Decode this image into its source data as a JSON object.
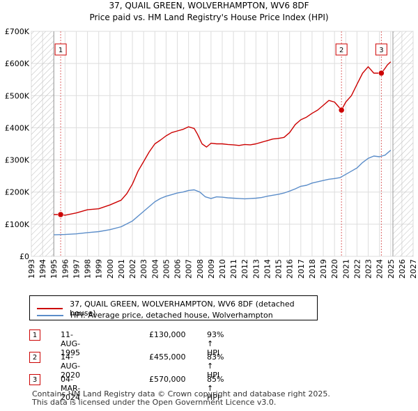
{
  "chart_data": {
    "type": "line",
    "title": "37, QUAIL GREEN, WOLVERHAMPTON, WV6 8DF",
    "subtitle": "Price paid vs. HM Land Registry's House Price Index (HPI)",
    "xlim": [
      1993,
      2027
    ],
    "ylim": [
      0,
      700000
    ],
    "y_ticks": [
      {
        "value": 0,
        "label": "£0"
      },
      {
        "value": 100000,
        "label": "£100K"
      },
      {
        "value": 200000,
        "label": "£200K"
      },
      {
        "value": 300000,
        "label": "£300K"
      },
      {
        "value": 400000,
        "label": "£400K"
      },
      {
        "value": 500000,
        "label": "£500K"
      },
      {
        "value": 600000,
        "label": "£600K"
      },
      {
        "value": 700000,
        "label": "£700K"
      }
    ],
    "x_ticks": [
      "1993",
      "1994",
      "1995",
      "1996",
      "1997",
      "1998",
      "1999",
      "2000",
      "2001",
      "2002",
      "2003",
      "2004",
      "2005",
      "2006",
      "2007",
      "2008",
      "2009",
      "2010",
      "2011",
      "2012",
      "2013",
      "2014",
      "2015",
      "2016",
      "2017",
      "2018",
      "2019",
      "2020",
      "2021",
      "2022",
      "2023",
      "2024",
      "2025",
      "2026",
      "2027"
    ],
    "data_start": 1995.0,
    "data_end": 2025.2,
    "series": [
      {
        "name": "37, QUAIL GREEN, WOLVERHAMPTON, WV6 8DF (detached house)",
        "color": "#cc0000",
        "x": [
          1995.0,
          1995.6,
          1996.0,
          1997.0,
          1998.0,
          1999.0,
          2000.0,
          2001.0,
          2001.5,
          2002.0,
          2002.5,
          2003.0,
          2003.5,
          2004.0,
          2004.5,
          2005.0,
          2005.5,
          2006.0,
          2006.5,
          2007.0,
          2007.5,
          2007.8,
          2008.2,
          2008.6,
          2009.0,
          2009.5,
          2010.0,
          2010.5,
          2011.0,
          2011.5,
          2012.0,
          2012.5,
          2013.0,
          2013.5,
          2014.0,
          2014.5,
          2015.0,
          2015.5,
          2016.0,
          2016.5,
          2017.0,
          2017.5,
          2018.0,
          2018.5,
          2019.0,
          2019.5,
          2020.0,
          2020.62,
          2021.0,
          2021.5,
          2022.0,
          2022.5,
          2023.0,
          2023.5,
          2024.17,
          2024.5,
          2024.7,
          2025.0
        ],
        "y": [
          130000,
          130000,
          128000,
          135000,
          145000,
          148000,
          160000,
          175000,
          195000,
          225000,
          265000,
          295000,
          325000,
          350000,
          362000,
          375000,
          385000,
          390000,
          395000,
          403000,
          398000,
          380000,
          350000,
          340000,
          352000,
          350000,
          350000,
          348000,
          347000,
          345000,
          348000,
          347000,
          350000,
          355000,
          360000,
          365000,
          367000,
          370000,
          385000,
          410000,
          425000,
          433000,
          445000,
          455000,
          470000,
          485000,
          480000,
          455000,
          480000,
          500000,
          535000,
          570000,
          590000,
          570000,
          570000,
          585000,
          595000,
          605000
        ]
      },
      {
        "name": "HPI: Average price, detached house, Wolverhampton",
        "color": "#5b8dc9",
        "x": [
          1995.0,
          1996.0,
          1997.0,
          1998.0,
          1999.0,
          2000.0,
          2001.0,
          2002.0,
          2003.0,
          2004.0,
          2004.5,
          2005.0,
          2005.5,
          2006.0,
          2006.5,
          2007.0,
          2007.5,
          2008.0,
          2008.5,
          2009.0,
          2009.5,
          2010.0,
          2010.5,
          2011.0,
          2011.5,
          2012.0,
          2012.5,
          2013.0,
          2013.5,
          2014.0,
          2014.5,
          2015.0,
          2015.5,
          2016.0,
          2016.5,
          2017.0,
          2017.5,
          2018.0,
          2018.5,
          2019.0,
          2019.5,
          2020.0,
          2020.5,
          2021.0,
          2021.5,
          2022.0,
          2022.5,
          2023.0,
          2023.5,
          2024.0,
          2024.5,
          2025.0
        ],
        "y": [
          67000,
          68000,
          70000,
          74000,
          77000,
          83000,
          92000,
          110000,
          140000,
          170000,
          180000,
          187000,
          192000,
          197000,
          200000,
          205000,
          207000,
          200000,
          185000,
          180000,
          185000,
          184000,
          182000,
          181000,
          180000,
          179000,
          180000,
          181000,
          183000,
          187000,
          190000,
          193000,
          197000,
          203000,
          210000,
          218000,
          221000,
          228000,
          232000,
          236000,
          240000,
          242000,
          245000,
          255000,
          265000,
          275000,
          292000,
          305000,
          312000,
          310000,
          315000,
          330000
        ]
      }
    ],
    "transactions": [
      {
        "num": "1",
        "year": 1995.61,
        "price": 130000
      },
      {
        "num": "2",
        "year": 2020.62,
        "price": 455000
      },
      {
        "num": "3",
        "year": 2024.17,
        "price": 570000
      }
    ]
  },
  "legend": {
    "property_label": "37, QUAIL GREEN, WOLVERHAMPTON, WV6 8DF (detached house)",
    "hpi_label": "HPI: Average price, detached house, Wolverhampton",
    "property_color": "#cc0000",
    "hpi_color": "#5b8dc9"
  },
  "table": [
    {
      "num": "1",
      "date": "11-AUG-1995",
      "price": "£130,000",
      "hpi": "93% ↑ HPI"
    },
    {
      "num": "2",
      "date": "14-AUG-2020",
      "price": "£455,000",
      "hpi": "83% ↑ HPI"
    },
    {
      "num": "3",
      "date": "04-MAR-2024",
      "price": "£570,000",
      "hpi": "85% ↑ HPI"
    }
  ],
  "footer": {
    "line1": "Contains HM Land Registry data © Crown copyright and database right 2025.",
    "line2": "This data is licensed under the Open Government Licence v3.0."
  }
}
